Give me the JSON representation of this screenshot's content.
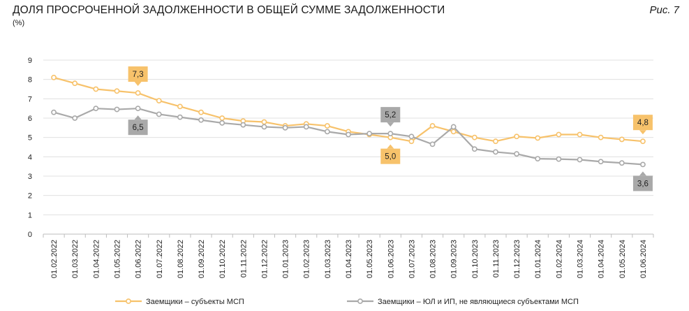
{
  "header": {
    "title": "ДОЛЯ ПРОСРОЧЕННОЙ ЗАДОЛЖЕННОСТИ В ОБЩЕЙ СУММЕ ЗАДОЛЖЕННОСТИ",
    "unit": "(%)",
    "figure": "Рис. 7"
  },
  "colors": {
    "msp": "#f7c26b",
    "non_msp": "#a9a9a9",
    "grid": "#e0e0e0"
  },
  "chart_data": {
    "type": "line",
    "title": "ДОЛЯ ПРОСРОЧЕННОЙ ЗАДОЛЖЕННОСТИ В ОБЩЕЙ СУММЕ ЗАДОЛЖЕННОСТИ",
    "ylabel": "(%)",
    "xlabel": "",
    "ylim": [
      0,
      9
    ],
    "yticks": [
      "0",
      "1",
      "2",
      "3",
      "4",
      "5",
      "6",
      "7",
      "8",
      "9"
    ],
    "grid": "horizontal",
    "legend": "bottom",
    "x": [
      "01.02.2022",
      "01.03.2022",
      "01.04.2022",
      "01.05.2022",
      "01.06.2022",
      "01.07.2022",
      "01.08.2022",
      "01.09.2022",
      "01.10.2022",
      "01.11.2022",
      "01.12.2022",
      "01.01.2023",
      "01.02.2023",
      "01.03.2023",
      "01.04.2023",
      "01.05.2023",
      "01.06.2023",
      "01.07.2023",
      "01.08.2023",
      "01.09.2023",
      "01.10.2023",
      "01.11.2023",
      "01.12.2023",
      "01.01.2024",
      "01.02.2024",
      "01.03.2024",
      "01.04.2024",
      "01.05.2024",
      "01.06.2024"
    ],
    "series": [
      {
        "name": "Заемщики – субъекты МСП",
        "color": "#f7c26b",
        "values": [
          8.1,
          7.8,
          7.5,
          7.4,
          7.3,
          6.9,
          6.6,
          6.3,
          6.0,
          5.85,
          5.8,
          5.6,
          5.7,
          5.6,
          5.3,
          5.15,
          5.0,
          4.8,
          5.6,
          5.3,
          5.0,
          4.8,
          5.05,
          4.97,
          5.15,
          5.15,
          5.0,
          4.9,
          4.8
        ]
      },
      {
        "name": "Заемщики – ЮЛ и ИП, не являющиеся субъектами МСП",
        "color": "#a9a9a9",
        "values": [
          6.3,
          6.0,
          6.5,
          6.45,
          6.5,
          6.2,
          6.05,
          5.9,
          5.75,
          5.65,
          5.55,
          5.5,
          5.55,
          5.3,
          5.15,
          5.2,
          5.2,
          5.05,
          4.65,
          5.55,
          4.4,
          4.25,
          4.15,
          3.9,
          3.88,
          3.85,
          3.75,
          3.68,
          3.6
        ]
      }
    ],
    "annotations": [
      {
        "series": 0,
        "index": 4,
        "text": "7,3",
        "side": "above"
      },
      {
        "series": 1,
        "index": 4,
        "text": "6,5",
        "side": "below"
      },
      {
        "series": 1,
        "index": 16,
        "text": "5,2",
        "side": "above"
      },
      {
        "series": 0,
        "index": 16,
        "text": "5,0",
        "side": "below"
      },
      {
        "series": 0,
        "index": 28,
        "text": "4,8",
        "side": "above"
      },
      {
        "series": 1,
        "index": 28,
        "text": "3,6",
        "side": "below"
      }
    ]
  }
}
